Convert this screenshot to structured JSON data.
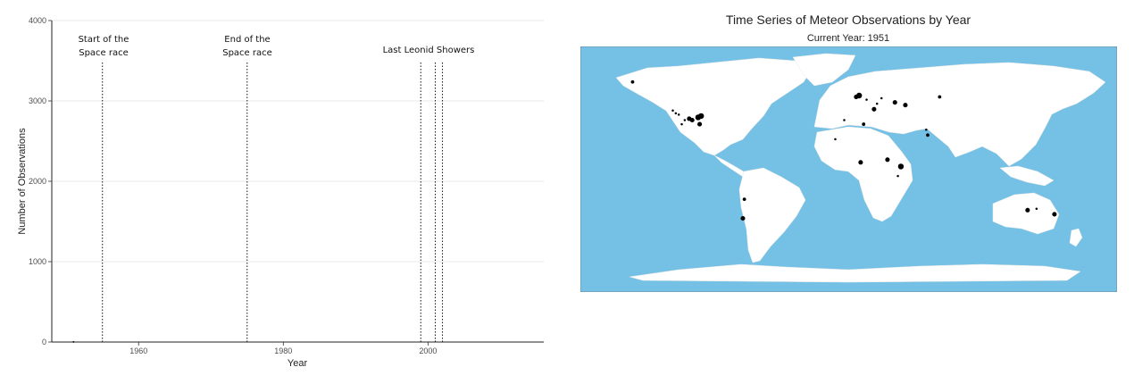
{
  "chart_data": [
    {
      "type": "line",
      "title": "",
      "xlabel": "Year",
      "ylabel": "Number of Observations",
      "xlim": [
        1948,
        2016
      ],
      "ylim": [
        0,
        4000
      ],
      "x_ticks": [
        1960,
        1980,
        2000
      ],
      "y_ticks": [
        0,
        1000,
        2000,
        3000,
        4000
      ],
      "grid": "horizontal",
      "series": [
        {
          "x": [
            1951
          ],
          "values": [
            2
          ]
        }
      ],
      "reference_lines": [
        {
          "x": 1955,
          "label": [
            "Start of the",
            "Space race"
          ]
        },
        {
          "x": 1975,
          "label": [
            "End of the",
            "Space race"
          ]
        },
        {
          "x": 1999,
          "label": [
            "Last Leonid Showers"
          ]
        },
        {
          "x": 2001,
          "label": []
        },
        {
          "x": 2002,
          "label": []
        }
      ]
    },
    {
      "type": "scatter",
      "title": "Time Series of Meteor Observations by Year",
      "subtitle": "Current Year: 1951",
      "background_color": "#75c1e5",
      "land_color": "#ffffff",
      "point_color": "#000000",
      "xlim": [
        -180,
        180
      ],
      "ylim": [
        -90,
        90
      ],
      "points": [
        {
          "lon": -145,
          "lat": 64,
          "size": 2
        },
        {
          "lon": -118,
          "lat": 43,
          "size": 1
        },
        {
          "lon": -116,
          "lat": 41,
          "size": 1
        },
        {
          "lon": -114,
          "lat": 40,
          "size": 1
        },
        {
          "lon": -107,
          "lat": 37,
          "size": 3
        },
        {
          "lon": -105,
          "lat": 36,
          "size": 3
        },
        {
          "lon": -101,
          "lat": 38,
          "size": 4
        },
        {
          "lon": -99,
          "lat": 39,
          "size": 4
        },
        {
          "lon": -100,
          "lat": 33,
          "size": 3
        },
        {
          "lon": -110,
          "lat": 36,
          "size": 1
        },
        {
          "lon": -112,
          "lat": 33,
          "size": 1
        },
        {
          "lon": 5,
          "lat": 53,
          "size": 3
        },
        {
          "lon": 7,
          "lat": 54,
          "size": 4
        },
        {
          "lon": 12,
          "lat": 51,
          "size": 1
        },
        {
          "lon": 17,
          "lat": 44,
          "size": 3
        },
        {
          "lon": 31,
          "lat": 49,
          "size": 3
        },
        {
          "lon": 38,
          "lat": 47,
          "size": 3
        },
        {
          "lon": 61,
          "lat": 53,
          "size": 2
        },
        {
          "lon": 19,
          "lat": 48,
          "size": 1
        },
        {
          "lon": 22,
          "lat": 52,
          "size": 1
        },
        {
          "lon": 10,
          "lat": 33,
          "size": 2
        },
        {
          "lon": -3,
          "lat": 36,
          "size": 1
        },
        {
          "lon": -9,
          "lat": 22,
          "size": 1
        },
        {
          "lon": 52,
          "lat": 29,
          "size": 1
        },
        {
          "lon": 53,
          "lat": 25,
          "size": 2
        },
        {
          "lon": 8,
          "lat": 5,
          "size": 3
        },
        {
          "lon": 26,
          "lat": 7,
          "size": 3
        },
        {
          "lon": 35,
          "lat": 2,
          "size": 4
        },
        {
          "lon": 33,
          "lat": -5,
          "size": 1
        },
        {
          "lon": -70,
          "lat": -22,
          "size": 2
        },
        {
          "lon": -71,
          "lat": -36,
          "size": 3
        },
        {
          "lon": 120,
          "lat": -30,
          "size": 3
        },
        {
          "lon": 126,
          "lat": -29,
          "size": 1
        },
        {
          "lon": 138,
          "lat": -33,
          "size": 3
        }
      ]
    }
  ],
  "annotations": {
    "space_race_start": [
      "Start of the",
      "Space race"
    ],
    "space_race_end": [
      "End of the",
      "Space race"
    ],
    "leonid": "Last Leonid Showers"
  }
}
